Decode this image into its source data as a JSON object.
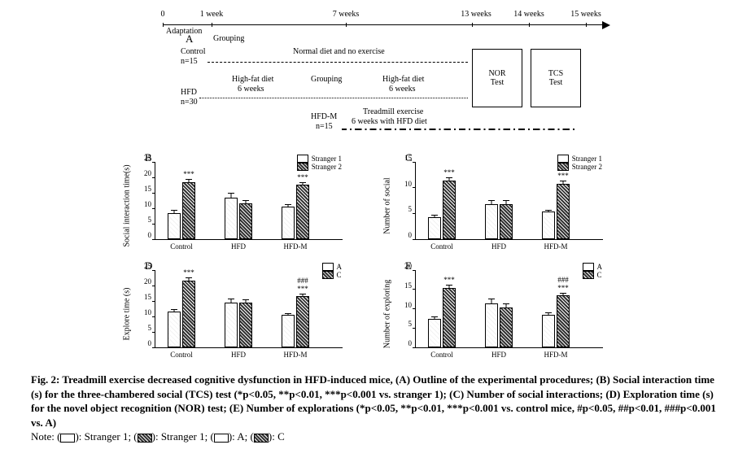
{
  "panelA": {
    "label": "A",
    "timeline": {
      "ticks": [
        {
          "pos": 0,
          "label": "0"
        },
        {
          "pos": 60,
          "label": "1 week"
        },
        {
          "pos": 225,
          "label": "7 weeks"
        },
        {
          "pos": 380,
          "label": "13 weeks"
        },
        {
          "pos": 450,
          "label": "14 weeks"
        },
        {
          "pos": 520,
          "label": "15 weeks"
        }
      ],
      "adaptation": "Adaptation"
    },
    "text": {
      "grouping_top": "Grouping",
      "control": "Control",
      "control_n": "n=15",
      "normaldiet": "Normal diet and no exercise",
      "hfd": "HFD",
      "hfd_n": "n=30",
      "hfd6_1": "High-fat diet",
      "hfd6_2": "6 weeks",
      "grouping2": "Grouping",
      "hfd6b_1": "High-fat diet",
      "hfd6b_2": "6 weeks",
      "hfdm": "HFD-M",
      "hfdm_n": "n=15",
      "tread_1": "Treadmill exercise",
      "tread_2": "6 weeks with HFD diet",
      "nor1": "NOR",
      "nor2": "Test",
      "tcs1": "TCS",
      "tcs2": "Test"
    }
  },
  "charts": [
    {
      "panel": "B",
      "ylabel": "Social interaction time(s)",
      "ymax": 25,
      "ystep": 5,
      "legend": [
        "Stranger 1",
        "Stranger 2"
      ],
      "groups": [
        "Control",
        "HFD",
        "HFD-M"
      ],
      "series": [
        {
          "vals": [
            8,
            18
          ],
          "err": [
            1.2,
            1.2
          ],
          "sig": [
            "",
            "***"
          ]
        },
        {
          "vals": [
            13,
            11
          ],
          "err": [
            1.8,
            1.5
          ],
          "sig": [
            "",
            ""
          ]
        },
        {
          "vals": [
            10,
            17
          ],
          "err": [
            1.0,
            1.2
          ],
          "sig": [
            "",
            "***"
          ]
        }
      ]
    },
    {
      "panel": "C",
      "ylabel": "Number of social",
      "ymax": 15,
      "ystep": 5,
      "legend": [
        "Stranger 1",
        "Stranger 2"
      ],
      "groups": [
        "Control",
        "HFD",
        "HFD-M"
      ],
      "series": [
        {
          "vals": [
            4,
            11
          ],
          "err": [
            0.6,
            0.8
          ],
          "sig": [
            "",
            "***"
          ]
        },
        {
          "vals": [
            6.5,
            6.5
          ],
          "err": [
            1.0,
            0.9
          ],
          "sig": [
            "",
            ""
          ]
        },
        {
          "vals": [
            5,
            10.5
          ],
          "err": [
            0.6,
            0.7
          ],
          "sig": [
            "",
            "***"
          ]
        }
      ]
    },
    {
      "panel": "D",
      "ylabel": "Explore time (s)",
      "ymax": 25,
      "ystep": 5,
      "legend": [
        "A",
        "C"
      ],
      "groups": [
        "Control",
        "HFD",
        "HFD-M"
      ],
      "series": [
        {
          "vals": [
            11,
            21
          ],
          "err": [
            1.2,
            1.4
          ],
          "sig": [
            "",
            "***"
          ]
        },
        {
          "vals": [
            14,
            14
          ],
          "err": [
            1.5,
            1.2
          ],
          "sig": [
            "",
            ""
          ]
        },
        {
          "vals": [
            10,
            16
          ],
          "err": [
            0.8,
            1.0
          ],
          "sig": [
            "",
            "###\n***"
          ]
        }
      ]
    },
    {
      "panel": "E",
      "ylabel": "Number of exploring",
      "ymax": 20,
      "ystep": 5,
      "legend": [
        "A",
        "C"
      ],
      "groups": [
        "Control",
        "HFD",
        "HFD-M"
      ],
      "series": [
        {
          "vals": [
            7,
            15
          ],
          "err": [
            0.8,
            1.0
          ],
          "sig": [
            "",
            "***"
          ]
        },
        {
          "vals": [
            11,
            10
          ],
          "err": [
            1.4,
            1.2
          ],
          "sig": [
            "",
            ""
          ]
        },
        {
          "vals": [
            8,
            13
          ],
          "err": [
            0.9,
            1.0
          ],
          "sig": [
            "",
            "###\n***"
          ]
        }
      ]
    }
  ],
  "colors": {
    "bar_border": "#000000",
    "light_fill": "#fcfcfc",
    "dark_fill": "#555555",
    "background": "#ffffff"
  },
  "caption": {
    "main": "Fig. 2: Treadmill exercise decreased cognitive dysfunction in HFD-induced mice, (A) Outline of the experimental procedures; (B) Social interaction time (s) for the three-chambered social (TCS) test (*p<0.05, **p<0.01, ***p<0.001 vs. stranger 1); (C) Number of social interactions; (D) Exploration time (s) for the novel object recognition (NOR) test; (E) Number of explorations (*p<0.05, **p<0.01, ***p<0.001 vs. control mice, #p<0.05, ##p<0.01, ###p<0.001 vs. A)",
    "note_prefix": "Note: (",
    "note_s1": "): Stranger 1; (",
    "note_s2": "): Stranger 1; (",
    "note_a": "): A; (",
    "note_c": "): C"
  }
}
